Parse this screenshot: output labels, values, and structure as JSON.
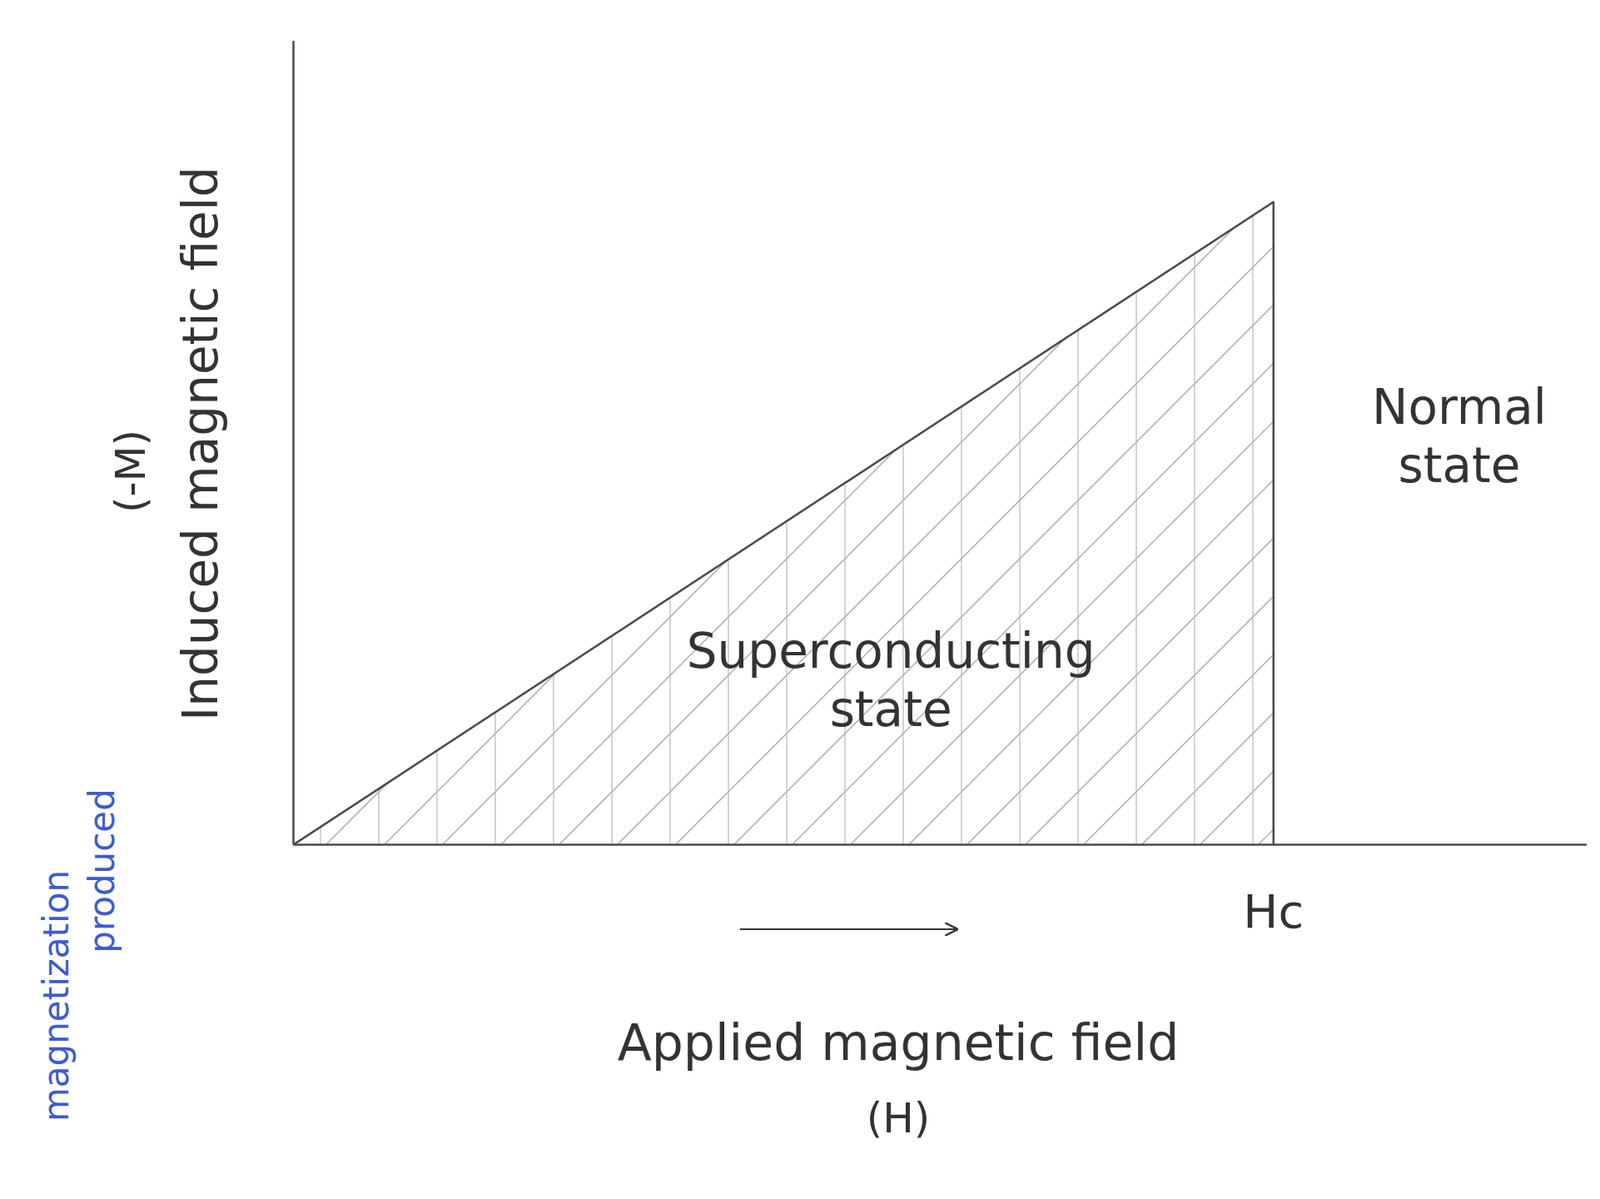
{
  "chart_data": {
    "type": "line",
    "x": [
      0,
      1,
      1
    ],
    "values": [
      0,
      1,
      0
    ],
    "color": "#4a4a4a",
    "xlim": [
      0,
      1.32
    ],
    "ylim": [
      0,
      1.25
    ],
    "xticks": [
      {
        "value": 1,
        "label": "Hc"
      }
    ],
    "yticks": [],
    "tick_labels": "x",
    "grid": false,
    "xlabel": [
      "Applied magnetic field",
      "(H)"
    ],
    "ylabel": [
      "Induced magnetic field",
      "(-M)"
    ],
    "ylabel_note": {
      "text": [
        "magnetization",
        "produced"
      ],
      "color": "#3d5bd0"
    },
    "annotations": [
      {
        "text": [
          "Superconducting",
          "state"
        ],
        "x": 0.61,
        "y": 0.25
      },
      {
        "text": [
          "Normal",
          "state"
        ],
        "x": 1.19,
        "y": 0.63
      }
    ]
  }
}
